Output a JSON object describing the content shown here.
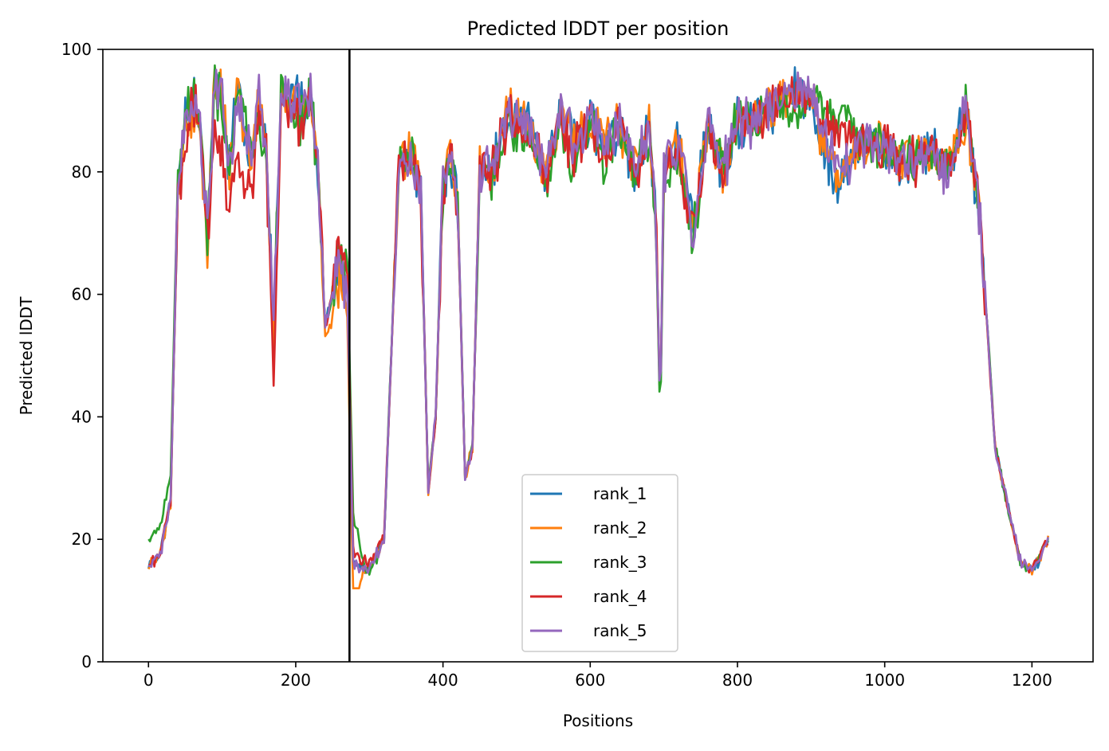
{
  "chart_data": {
    "type": "line",
    "title": "Predicted lDDT per position",
    "xlabel": "Positions",
    "ylabel": "Predicted lDDT",
    "xlim": [
      -62,
      1283
    ],
    "ylim": [
      0,
      100
    ],
    "xticks": [
      0,
      200,
      400,
      600,
      800,
      1000,
      1200
    ],
    "yticks": [
      0,
      20,
      40,
      60,
      80,
      100
    ],
    "grid": false,
    "legend_position": "lower-center",
    "chain_break": 273,
    "series": [
      {
        "name": "rank_1",
        "color": "#1f77b4",
        "offset": [
          0,
          0,
          0,
          0,
          0,
          0,
          0,
          0,
          0,
          0,
          0,
          0,
          0,
          0,
          0,
          0,
          0,
          0,
          0,
          0,
          0,
          0,
          0,
          0,
          0,
          0,
          0,
          0,
          0,
          0,
          0,
          0,
          0,
          0,
          0,
          0,
          0,
          0,
          0,
          0,
          0,
          0,
          0,
          0,
          0,
          0,
          0,
          0,
          0,
          0,
          0,
          0,
          0,
          0,
          0,
          0,
          0,
          0,
          0,
          -2.5,
          -2,
          -1,
          0,
          0,
          0,
          0,
          0,
          0,
          0,
          0,
          0,
          0,
          0,
          0,
          0,
          0,
          0,
          0,
          -0.5,
          0
        ]
      },
      {
        "name": "rank_2",
        "color": "#ff7f0e",
        "offset": [
          0,
          0,
          0,
          -1,
          -3,
          -3,
          0,
          0,
          0,
          0,
          0,
          -4,
          0,
          0,
          0,
          0,
          -4,
          -1,
          -7,
          0,
          0,
          0,
          0,
          0,
          0,
          0,
          0,
          0,
          0,
          0,
          0,
          0,
          0,
          0,
          0,
          0,
          0,
          0,
          0,
          0,
          0,
          0,
          0,
          0,
          0,
          0,
          0,
          0,
          0,
          0,
          0,
          0,
          0,
          0,
          0,
          0,
          0,
          0,
          0,
          -1,
          -1.5,
          -2,
          -1,
          -0.5,
          0,
          0,
          0,
          0,
          0,
          0,
          0,
          0,
          0,
          0,
          0,
          0,
          0,
          0,
          -0.5,
          0
        ]
      },
      {
        "name": "rank_3",
        "color": "#2ca02c",
        "offset": [
          4,
          5,
          4,
          2,
          0,
          0,
          -2,
          0,
          0,
          0,
          -6,
          0,
          0,
          -3,
          0,
          0,
          0,
          4,
          8,
          -0.5,
          -0.5,
          0,
          0,
          0,
          0,
          0,
          0,
          0,
          0,
          0,
          -2,
          -1,
          -2,
          -3,
          -1,
          -5,
          0,
          -6,
          0,
          0,
          -3,
          0,
          0,
          -1,
          -2,
          -2,
          -1,
          -2,
          0,
          -1,
          0,
          0,
          0,
          0,
          0,
          0,
          -1,
          -2,
          0,
          3,
          8,
          10,
          3,
          0,
          0,
          0,
          0,
          0,
          0,
          0,
          0,
          0,
          0,
          0,
          0,
          0,
          0,
          0,
          0,
          0
        ]
      },
      {
        "name": "rank_4",
        "color": "#d62728",
        "offset": [
          0,
          0,
          0,
          -4,
          0,
          0,
          -10,
          -8,
          -10,
          -6,
          0,
          -10,
          0,
          -4,
          0,
          0,
          0,
          5,
          2,
          1,
          1,
          0,
          0,
          0,
          0,
          0,
          0,
          0,
          0,
          0,
          -1,
          -1,
          -1,
          -2,
          0,
          -3,
          0,
          -4,
          0,
          0,
          -2,
          0,
          0,
          -1,
          0,
          0,
          -1,
          -2,
          0,
          -1,
          0,
          -1,
          0,
          0,
          0,
          0,
          0,
          0,
          0,
          2,
          4,
          5,
          2,
          0,
          0,
          0,
          0,
          0,
          0,
          0,
          0,
          0,
          0,
          0,
          0,
          0,
          0,
          0,
          0,
          0
        ]
      },
      {
        "name": "rank_5",
        "color": "#9467bd",
        "offset": [
          0,
          0,
          0,
          0,
          0,
          0,
          0,
          0,
          0,
          0,
          0,
          0,
          0,
          0,
          0,
          0,
          0,
          0,
          0,
          0,
          0,
          0,
          0,
          0,
          0,
          0,
          0,
          0,
          0,
          0,
          0,
          0,
          0,
          0,
          0,
          0,
          0,
          0,
          0,
          0,
          0,
          0,
          0,
          0,
          0,
          0,
          0,
          0,
          0,
          0,
          0,
          0,
          0,
          0,
          0,
          0,
          0,
          0,
          0,
          0,
          0,
          0,
          0,
          0,
          0,
          0,
          0,
          0,
          0,
          0,
          0,
          0,
          0,
          0,
          0,
          0,
          0,
          0,
          0,
          0
        ]
      }
    ],
    "profile": [
      [
        0,
        16
      ],
      [
        15,
        17
      ],
      [
        30,
        26
      ],
      [
        40,
        78
      ],
      [
        50,
        88
      ],
      [
        60,
        92
      ],
      [
        70,
        88
      ],
      [
        80,
        70
      ],
      [
        90,
        95
      ],
      [
        100,
        93
      ],
      [
        110,
        80
      ],
      [
        120,
        93
      ],
      [
        130,
        88
      ],
      [
        140,
        82
      ],
      [
        150,
        92
      ],
      [
        160,
        85
      ],
      [
        170,
        55
      ],
      [
        180,
        93
      ],
      [
        190,
        92
      ],
      [
        200,
        92
      ],
      [
        210,
        90
      ],
      [
        220,
        93
      ],
      [
        230,
        80
      ],
      [
        240,
        55
      ],
      [
        250,
        60
      ],
      [
        260,
        65
      ],
      [
        270,
        60
      ],
      [
        278,
        16
      ],
      [
        300,
        15
      ],
      [
        320,
        20
      ],
      [
        340,
        82
      ],
      [
        360,
        82
      ],
      [
        370,
        76
      ],
      [
        380,
        28
      ],
      [
        390,
        40
      ],
      [
        400,
        78
      ],
      [
        410,
        82
      ],
      [
        420,
        75
      ],
      [
        430,
        30
      ],
      [
        440,
        35
      ],
      [
        450,
        80
      ],
      [
        470,
        82
      ],
      [
        490,
        90
      ],
      [
        520,
        87
      ],
      [
        540,
        80
      ],
      [
        560,
        90
      ],
      [
        580,
        85
      ],
      [
        600,
        88
      ],
      [
        620,
        84
      ],
      [
        640,
        88
      ],
      [
        660,
        80
      ],
      [
        680,
        88
      ],
      [
        690,
        70
      ],
      [
        695,
        40
      ],
      [
        700,
        80
      ],
      [
        720,
        85
      ],
      [
        740,
        70
      ],
      [
        760,
        88
      ],
      [
        780,
        80
      ],
      [
        800,
        88
      ],
      [
        820,
        88
      ],
      [
        840,
        90
      ],
      [
        860,
        92
      ],
      [
        880,
        93
      ],
      [
        900,
        92
      ],
      [
        920,
        85
      ],
      [
        940,
        80
      ],
      [
        960,
        84
      ],
      [
        980,
        85
      ],
      [
        1000,
        84
      ],
      [
        1020,
        82
      ],
      [
        1040,
        82
      ],
      [
        1060,
        84
      ],
      [
        1080,
        80
      ],
      [
        1100,
        85
      ],
      [
        1110,
        90
      ],
      [
        1130,
        72
      ],
      [
        1150,
        35
      ],
      [
        1170,
        24
      ],
      [
        1185,
        16
      ],
      [
        1200,
        15
      ],
      [
        1222,
        20
      ]
    ]
  }
}
